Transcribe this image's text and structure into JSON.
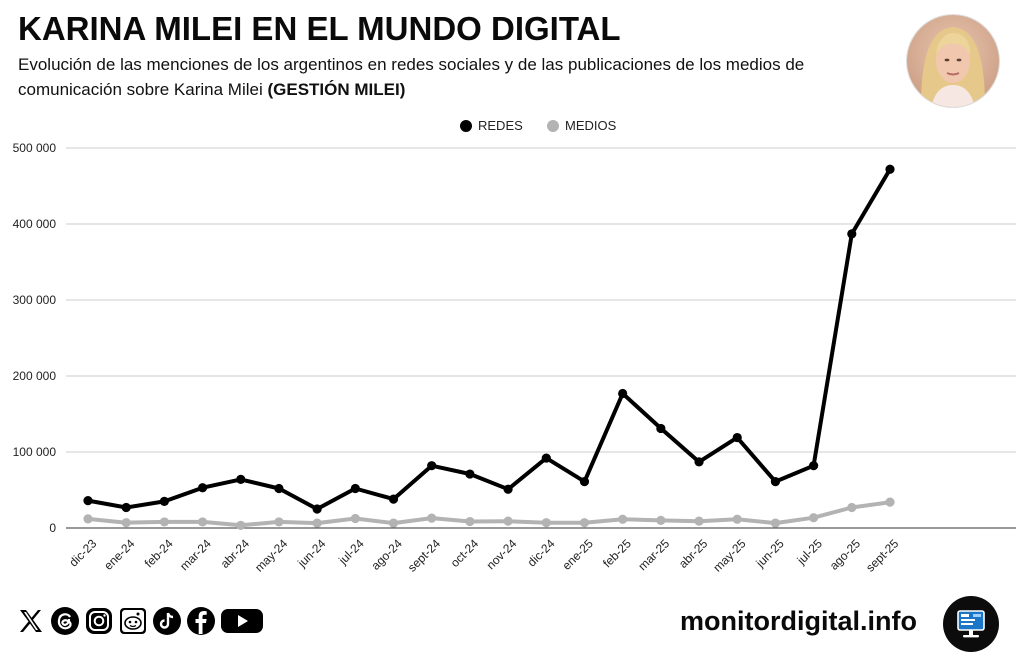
{
  "header": {
    "title": "KARINA MILEI EN EL MUNDO DIGITAL",
    "subtitle_part1": "Evolución de las menciones de los argentinos en redes sociales y de las publicaciones de los medios de comunicación sobre Karina Milei",
    "subtitle_bold": "(GESTIÓN MILEI)"
  },
  "footer": {
    "brand": "monitordigital.info",
    "social_icons": [
      "x-icon",
      "threads-icon",
      "instagram-icon",
      "reddit-icon",
      "tiktok-icon",
      "facebook-icon",
      "youtube-icon"
    ]
  },
  "colors": {
    "redes": "#000000",
    "medios": "#b3b3b3",
    "grid": "#cccccc"
  },
  "chart_data": {
    "type": "line",
    "title": "KARINA MILEI EN EL MUNDO DIGITAL",
    "xlabel": "",
    "ylabel": "",
    "ylim": [
      0,
      500000
    ],
    "yticks": [
      0,
      100000,
      200000,
      300000,
      400000,
      500000
    ],
    "ytick_labels": [
      "0",
      "100 000",
      "200 000",
      "300 000",
      "400 000",
      "500 000"
    ],
    "grid": true,
    "legend_position": "top-center",
    "categories": [
      "dic-23",
      "ene-24",
      "feb-24",
      "mar-24",
      "abr-24",
      "may-24",
      "jun-24",
      "jul-24",
      "ago-24",
      "sept-24",
      "oct-24",
      "nov-24",
      "dic-24",
      "ene-25",
      "feb-25",
      "mar-25",
      "abr-25",
      "may-25",
      "jun-25",
      "jul-25",
      "ago-25",
      "sept-25"
    ],
    "series": [
      {
        "name": "REDES",
        "values": [
          36000,
          27000,
          35000,
          53000,
          64000,
          52000,
          25000,
          52000,
          38000,
          82000,
          71000,
          51000,
          92000,
          61000,
          177000,
          131000,
          87000,
          119000,
          61000,
          82000,
          387000,
          472000
        ]
      },
      {
        "name": "MEDIOS",
        "values": [
          12000,
          7000,
          8000,
          8000,
          3500,
          8000,
          6500,
          12500,
          6500,
          13000,
          8500,
          9000,
          7000,
          7000,
          11500,
          10000,
          9000,
          11500,
          6500,
          13500,
          27000,
          34000
        ]
      }
    ]
  }
}
